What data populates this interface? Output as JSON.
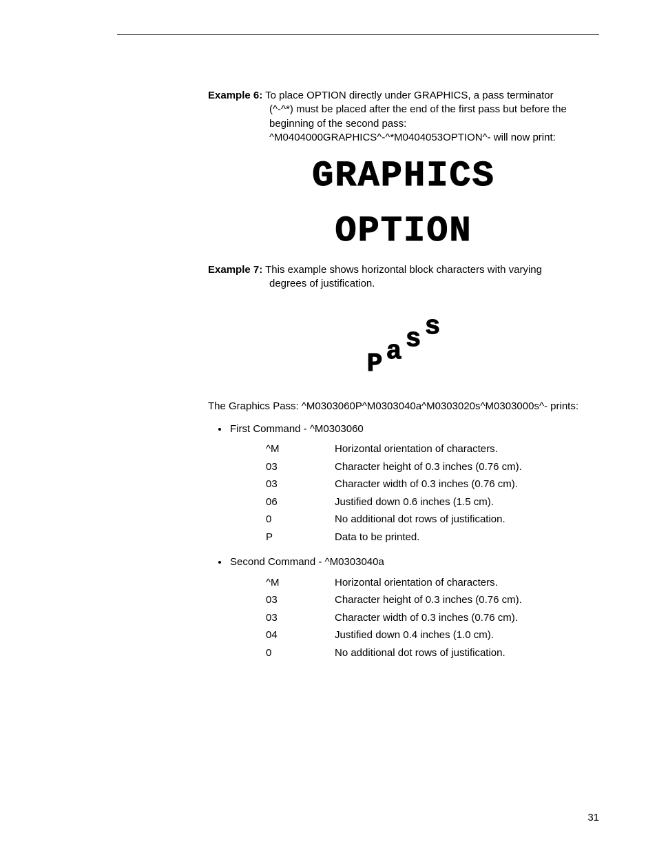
{
  "example6": {
    "label": "Example 6:",
    "line1": "To place OPTION directly under GRAPHICS, a pass terminator",
    "line2": "(^-^*) must be placed after the end of the first pass but before the",
    "line3": "beginning of the second pass:",
    "line4": "^M0404000GRAPHICS^-^*M0404053OPTION^- will now print:"
  },
  "graphics": {
    "line1": "GRAPHICS",
    "line2": "OPTION"
  },
  "example7": {
    "label": "Example 7:",
    "line1": "This example shows horizontal block characters with varying",
    "line2": "degrees of justification."
  },
  "pass_chars": [
    "P",
    "a",
    "s",
    "s"
  ],
  "graphics_pass_text": "The Graphics Pass: ^M0303060P^M0303040a^M0303020s^M0303000s^- prints:",
  "bullet1": "First Command - ^M0303060",
  "table1": [
    {
      "code": "^M",
      "desc": "Horizontal orientation of characters."
    },
    {
      "code": "03",
      "desc": "Character height of 0.3 inches (0.76 cm)."
    },
    {
      "code": "03",
      "desc": "Character width of 0.3 inches (0.76 cm)."
    },
    {
      "code": "06",
      "desc": "Justified down 0.6 inches (1.5 cm)."
    },
    {
      "code": "0",
      "desc": "No additional dot rows of justification."
    },
    {
      "code": "P",
      "desc": "Data to be printed."
    }
  ],
  "bullet2": "Second Command - ^M0303040a",
  "table2": [
    {
      "code": "^M",
      "desc": "Horizontal orientation of characters."
    },
    {
      "code": "03",
      "desc": "Character height of 0.3 inches (0.76 cm)."
    },
    {
      "code": "03",
      "desc": "Character width of 0.3 inches (0.76 cm)."
    },
    {
      "code": "04",
      "desc": "Justified down 0.4 inches (1.0 cm)."
    },
    {
      "code": "0",
      "desc": "No additional dot rows of justification."
    }
  ],
  "page_number": "31"
}
